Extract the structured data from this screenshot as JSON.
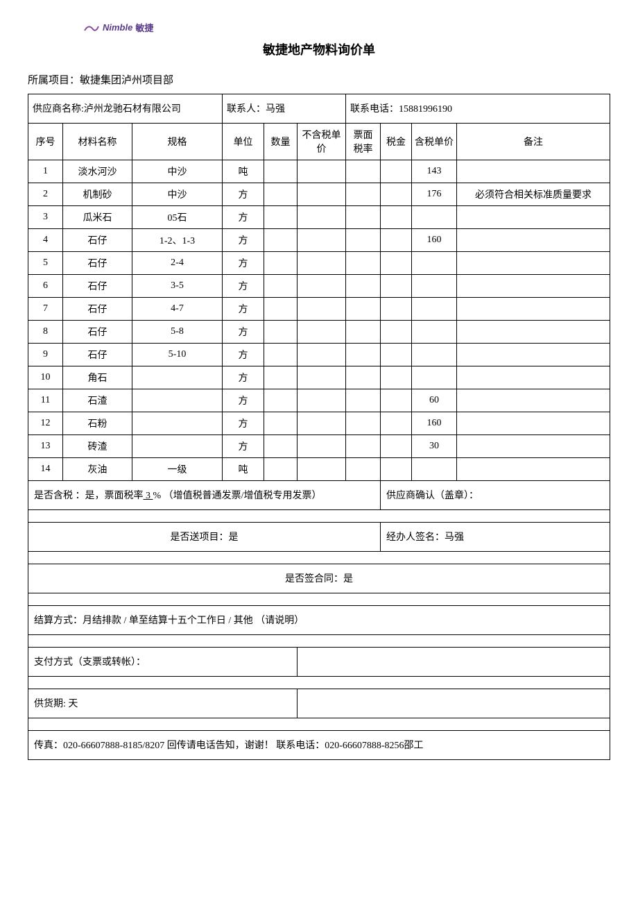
{
  "logo": {
    "en": "Nimble",
    "cn": "敏捷"
  },
  "title": "敏捷地产物料询价单",
  "project_label": "所属项目：敏捷集团泸州项目部",
  "supplier": {
    "name_label": "供应商名称:泸州龙驰石材有限公司",
    "contact_label": "联系人：马强",
    "phone_label": "联系电话：15881996190"
  },
  "columns": {
    "seq": "序号",
    "name": "材料名称",
    "spec": "规格",
    "unit": "单位",
    "qty": "数量",
    "notax": "不含税单价",
    "rate": "票面税率",
    "tax": "税金",
    "incl": "含税单价",
    "remark": "备注"
  },
  "rows": [
    {
      "seq": "1",
      "name": "淡水河沙",
      "spec": "中沙",
      "unit": "吨",
      "incl": "143",
      "remark": ""
    },
    {
      "seq": "2",
      "name": "机制砂",
      "spec": "中沙",
      "unit": "方",
      "incl": "176",
      "remark": "必须符合相关标准质量要求"
    },
    {
      "seq": "3",
      "name": "瓜米石",
      "spec": "05石",
      "unit": "方",
      "incl": "",
      "remark": ""
    },
    {
      "seq": "4",
      "name": "石仔",
      "spec": "1-2、1-3",
      "unit": "方",
      "incl": "160",
      "remark": ""
    },
    {
      "seq": "5",
      "name": "石仔",
      "spec": "2-4",
      "unit": "方",
      "incl": "",
      "remark": ""
    },
    {
      "seq": "6",
      "name": "石仔",
      "spec": "3-5",
      "unit": "方",
      "incl": "",
      "remark": ""
    },
    {
      "seq": "7",
      "name": "石仔",
      "spec": "4-7",
      "unit": "方",
      "incl": "",
      "remark": ""
    },
    {
      "seq": "8",
      "name": "石仔",
      "spec": "5-8",
      "unit": "方",
      "incl": "",
      "remark": ""
    },
    {
      "seq": "9",
      "name": "石仔",
      "spec": "5-10",
      "unit": "方",
      "incl": "",
      "remark": ""
    },
    {
      "seq": "10",
      "name": "角石",
      "spec": "",
      "unit": "方",
      "incl": "",
      "remark": ""
    },
    {
      "seq": "11",
      "name": "石渣",
      "spec": "",
      "unit": "方",
      "incl": "60",
      "remark": ""
    },
    {
      "seq": "12",
      "name": "石粉",
      "spec": "",
      "unit": "方",
      "incl": "160",
      "remark": ""
    },
    {
      "seq": "13",
      "name": "砖渣",
      "spec": "",
      "unit": "方",
      "incl": "30",
      "remark": ""
    },
    {
      "seq": "14",
      "name": "灰油",
      "spec": "一级",
      "unit": "吨",
      "incl": "",
      "remark": ""
    }
  ],
  "footer": {
    "tax_incl_prefix": "是否含税 ：是，票面税率",
    "tax_rate_underlined": " 3 ",
    "tax_incl_suffix": "% （增值税普通发票/增值税专用发票）",
    "supplier_confirm": "供应商确认（盖章）：",
    "delivery": "是否送项目：是",
    "signer": "经办人签名：马强",
    "contract": "是否签合同：是",
    "settlement": "结算方式：月结排款 / 单至结算十五个工作日 /  其他 （请说明）",
    "payment": "支付方式（支票或转帐）：",
    "lead_time": "供货期:        天",
    "fax_line": "传真：020-66607888-8185/8207   回传请电话告知，谢谢！    联系电话：020-66607888-8256邵工"
  },
  "colors": {
    "text": "#000000",
    "background": "#ffffff",
    "border": "#000000",
    "logo": "#5a3a8a"
  }
}
